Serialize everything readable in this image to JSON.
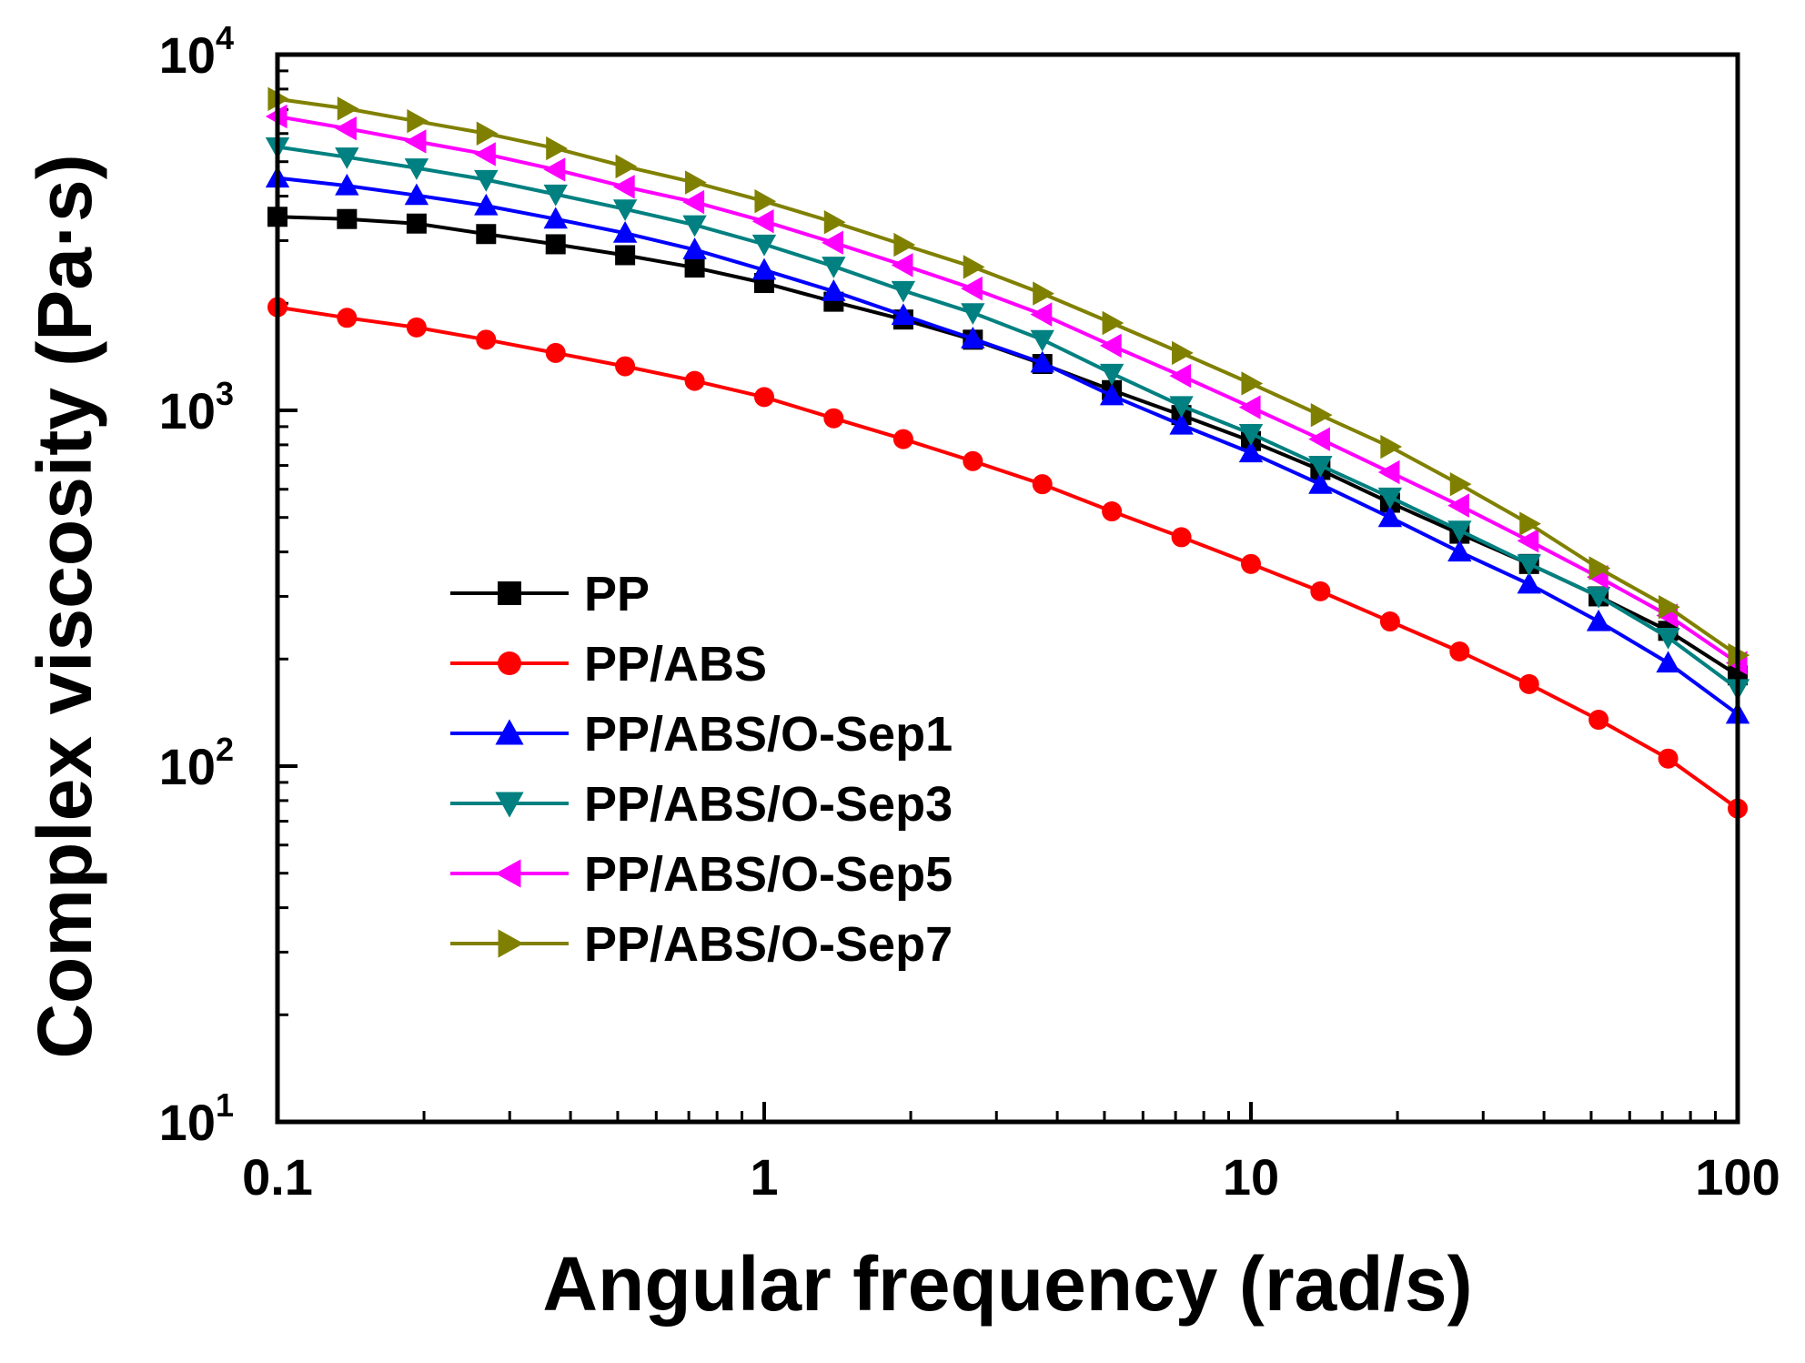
{
  "chart_data": {
    "type": "line",
    "title": "",
    "xlabel": "Angular frequency (rad/s)",
    "ylabel": "Complex viscosity (Pa·s)",
    "xscale": "log",
    "yscale": "log",
    "xlim": [
      0.1,
      100
    ],
    "ylim": [
      10,
      10000
    ],
    "x_ticks": [
      {
        "value": 0.1,
        "label": "0.1"
      },
      {
        "value": 1,
        "label": "1"
      },
      {
        "value": 10,
        "label": "10"
      },
      {
        "value": 100,
        "label": "100"
      }
    ],
    "y_ticks": [
      {
        "value": 10,
        "base": "10",
        "exp": "1"
      },
      {
        "value": 100,
        "base": "10",
        "exp": "2"
      },
      {
        "value": 1000,
        "base": "10",
        "exp": "3"
      },
      {
        "value": 10000,
        "base": "10",
        "exp": "4"
      }
    ],
    "legend_position": "center-left",
    "x": [
      0.1,
      0.1389,
      0.1931,
      0.2683,
      0.3728,
      0.5179,
      0.7197,
      1.0,
      1.389,
      1.931,
      2.683,
      3.728,
      5.179,
      7.197,
      10.0,
      13.89,
      19.31,
      26.83,
      37.28,
      51.79,
      71.97,
      100.0
    ],
    "series": [
      {
        "name": "PP",
        "color": "#000000",
        "marker": "square",
        "values": [
          3500,
          3450,
          3350,
          3130,
          2930,
          2730,
          2520,
          2280,
          2020,
          1800,
          1580,
          1350,
          1140,
          970,
          820,
          680,
          550,
          450,
          370,
          300,
          240,
          180
        ]
      },
      {
        "name": "PP/ABS",
        "color": "#ff0000",
        "marker": "circle",
        "values": [
          1950,
          1820,
          1710,
          1580,
          1450,
          1330,
          1210,
          1090,
          950,
          830,
          720,
          620,
          520,
          440,
          370,
          310,
          255,
          210,
          170,
          135,
          105,
          76
        ]
      },
      {
        "name": "PP/ABS/O-Sep1",
        "color": "#0000ff",
        "marker": "triangle-up",
        "values": [
          4500,
          4280,
          4020,
          3760,
          3450,
          3150,
          2830,
          2480,
          2160,
          1850,
          1590,
          1360,
          1100,
          910,
          760,
          620,
          500,
          400,
          325,
          255,
          195,
          140
        ]
      },
      {
        "name": "PP/ABS/O-Sep3",
        "color": "#008080",
        "marker": "triangle-down",
        "values": [
          5500,
          5150,
          4800,
          4450,
          4050,
          3680,
          3320,
          2930,
          2540,
          2170,
          1880,
          1580,
          1270,
          1030,
          860,
          700,
          570,
          460,
          370,
          300,
          230,
          165
        ]
      },
      {
        "name": "PP/ABS/O-Sep5",
        "color": "#ff00ff",
        "marker": "triangle-left",
        "values": [
          6700,
          6200,
          5700,
          5250,
          4750,
          4250,
          3850,
          3400,
          2960,
          2560,
          2200,
          1860,
          1520,
          1250,
          1020,
          830,
          670,
          540,
          430,
          340,
          265,
          195
        ]
      },
      {
        "name": "PP/ABS/O-Sep7",
        "color": "#808000",
        "marker": "triangle-right",
        "values": [
          7500,
          7050,
          6500,
          6000,
          5450,
          4850,
          4370,
          3870,
          3380,
          2920,
          2530,
          2130,
          1760,
          1450,
          1190,
          970,
          790,
          620,
          480,
          360,
          280,
          205
        ]
      }
    ]
  }
}
